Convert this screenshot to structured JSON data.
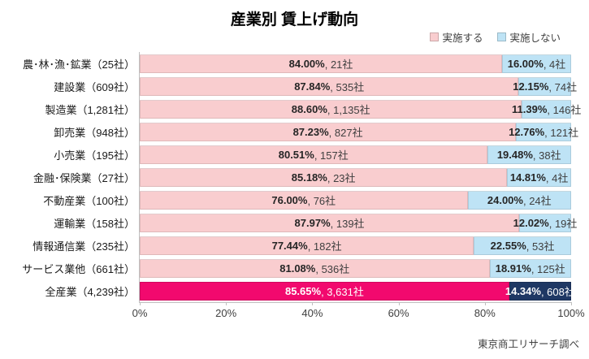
{
  "title": "産業別 賃上げ動向",
  "footer": "東京商工リサーチ調べ",
  "legend": {
    "items": [
      {
        "name": "yes-swatch",
        "label": "実施する",
        "color": "#F9CDCF"
      },
      {
        "name": "no-swatch",
        "label": "実施しない",
        "color": "#BEE3F5"
      }
    ]
  },
  "colors": {
    "yes": "#F9CDCF",
    "no": "#BEE3F5",
    "yes_highlight": "#F2096E",
    "no_highlight": "#1F3864",
    "axis_line": "#BFBFBF",
    "label_text": "#262626",
    "highlight_text": "#FFFFFF"
  },
  "chart_data": {
    "type": "bar",
    "orientation": "horizontal",
    "stacked": true,
    "title": "産業別 賃上げ動向",
    "xlabel": "",
    "ylabel": "",
    "xlim": [
      0,
      100
    ],
    "x_ticks": [
      "0%",
      "20%",
      "40%",
      "60%",
      "80%",
      "100%"
    ],
    "grid": false,
    "legend_position": "top-right",
    "series_names": [
      "実施する",
      "実施しない"
    ],
    "source": "東京商工リサーチ調べ",
    "rows": [
      {
        "category": "農･林･漁･鉱業（25社）",
        "yes_value": 84.0,
        "yes_label": "84.00%",
        "yes_count": ", 21社",
        "no_value": 16.0,
        "no_label": "16.00%",
        "no_count": ", 4社",
        "highlight": false
      },
      {
        "category": "建設業（609社）",
        "yes_value": 87.84,
        "yes_label": "87.84%",
        "yes_count": ", 535社",
        "no_value": 12.15,
        "no_label": "12.15%",
        "no_count": ", 74社",
        "highlight": false
      },
      {
        "category": "製造業（1,281社）",
        "yes_value": 88.6,
        "yes_label": "88.60%",
        "yes_count": ", 1,135社",
        "no_value": 11.39,
        "no_label": "11.39%",
        "no_count": ", 146社",
        "highlight": false
      },
      {
        "category": "卸売業（948社）",
        "yes_value": 87.23,
        "yes_label": "87.23%",
        "yes_count": ", 827社",
        "no_value": 12.76,
        "no_label": "12.76%",
        "no_count": ", 121社",
        "highlight": false
      },
      {
        "category": "小売業（195社）",
        "yes_value": 80.51,
        "yes_label": "80.51%",
        "yes_count": ", 157社",
        "no_value": 19.48,
        "no_label": "19.48%",
        "no_count": ", 38社",
        "highlight": false
      },
      {
        "category": "金融･保険業（27社）",
        "yes_value": 85.18,
        "yes_label": "85.18%",
        "yes_count": ", 23社",
        "no_value": 14.81,
        "no_label": "14.81%",
        "no_count": ", 4社",
        "highlight": false
      },
      {
        "category": "不動産業（100社）",
        "yes_value": 76.0,
        "yes_label": "76.00%",
        "yes_count": ", 76社",
        "no_value": 24.0,
        "no_label": "24.00%",
        "no_count": ", 24社",
        "highlight": false
      },
      {
        "category": "運輸業（158社）",
        "yes_value": 87.97,
        "yes_label": "87.97%",
        "yes_count": ", 139社",
        "no_value": 12.02,
        "no_label": "12.02%",
        "no_count": ", 19社",
        "highlight": false
      },
      {
        "category": "情報通信業（235社）",
        "yes_value": 77.44,
        "yes_label": "77.44%",
        "yes_count": ", 182社",
        "no_value": 22.55,
        "no_label": "22.55%",
        "no_count": ", 53社",
        "highlight": false
      },
      {
        "category": "サービス業他（661社）",
        "yes_value": 81.08,
        "yes_label": "81.08%",
        "yes_count": ", 536社",
        "no_value": 18.91,
        "no_label": "18.91%",
        "no_count": ", 125社",
        "highlight": false
      },
      {
        "category": "全産業（4,239社）",
        "yes_value": 85.65,
        "yes_label": "85.65%",
        "yes_count": ", 3,631社",
        "no_value": 14.34,
        "no_label": "14.34%",
        "no_count": ", 608社",
        "highlight": true
      }
    ]
  }
}
